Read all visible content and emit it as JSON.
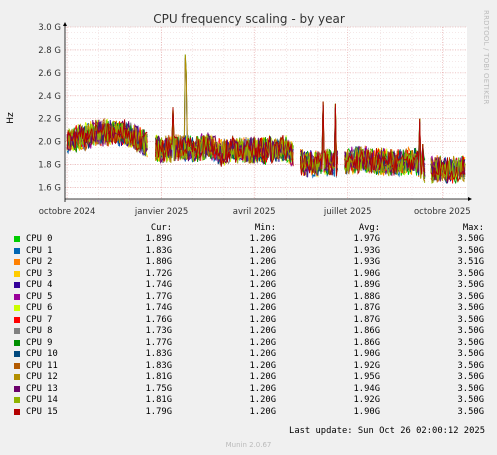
{
  "chart_data": {
    "type": "line",
    "title": "CPU frequency scaling - by year",
    "ylabel": "Hz",
    "watermark": "RRDTOOL / TOBI OETIKER",
    "ylim": [
      1.5,
      3.0
    ],
    "y_ticks": [
      "1.6 G",
      "1.8 G",
      "2.0 G",
      "2.2 G",
      "2.4 G",
      "2.6 G",
      "2.8 G",
      "3.0 G"
    ],
    "y_tick_values": [
      1.6,
      1.8,
      2.0,
      2.2,
      2.4,
      2.6,
      2.8,
      3.0
    ],
    "x_ticks": [
      "octobre 2024",
      "janvier 2025",
      "avril 2025",
      "juillet 2025",
      "octobre 2025"
    ],
    "x_tick_values": [
      1,
      93,
      183,
      274,
      366
    ],
    "xlim": [
      -1,
      390
    ],
    "grid": true,
    "trend": {
      "x": [
        1,
        30,
        55,
        80,
        95,
        110,
        125,
        140,
        150,
        160,
        180,
        200,
        215,
        230,
        240,
        255,
        265,
        275,
        285,
        300,
        320,
        340,
        350,
        365,
        375,
        388
      ],
      "y": [
        2.0,
        2.08,
        2.08,
        1.98,
        1.93,
        1.95,
        1.93,
        1.97,
        1.9,
        1.93,
        1.92,
        1.92,
        1.94,
        1.82,
        1.8,
        1.82,
        1.8,
        1.83,
        1.85,
        1.83,
        1.82,
        1.83,
        1.75,
        1.76,
        1.75,
        1.77
      ]
    },
    "gaps": [
      [
        80,
        86
      ],
      [
        222,
        227
      ],
      [
        265,
        270
      ],
      [
        350,
        354
      ]
    ],
    "spikes": [
      {
        "x": 104,
        "y": 2.3
      },
      {
        "x": 116,
        "y": 2.76
      },
      {
        "x": 117,
        "y": 2.6
      },
      {
        "x": 198,
        "y": 2.05
      },
      {
        "x": 250,
        "y": 2.35
      },
      {
        "x": 262,
        "y": 2.33
      },
      {
        "x": 266,
        "y": 2.17
      },
      {
        "x": 344,
        "y": 2.2
      },
      {
        "x": 347,
        "y": 1.98
      }
    ],
    "series": [
      {
        "name": "CPU 0",
        "color": "#00cc00"
      },
      {
        "name": "CPU 1",
        "color": "#0066b3"
      },
      {
        "name": "CPU 2",
        "color": "#ff8000"
      },
      {
        "name": "CPU 3",
        "color": "#ffcc00"
      },
      {
        "name": "CPU 4",
        "color": "#330099"
      },
      {
        "name": "CPU 5",
        "color": "#990099"
      },
      {
        "name": "CPU 6",
        "color": "#ccff00"
      },
      {
        "name": "CPU 7",
        "color": "#ff0000"
      },
      {
        "name": "CPU 8",
        "color": "#808080"
      },
      {
        "name": "CPU 9",
        "color": "#008f00"
      },
      {
        "name": "CPU 10",
        "color": "#00487d"
      },
      {
        "name": "CPU 11",
        "color": "#b35a00"
      },
      {
        "name": "CPU 12",
        "color": "#b38f00"
      },
      {
        "name": "CPU 13",
        "color": "#6b006b"
      },
      {
        "name": "CPU 14",
        "color": "#8fb300"
      },
      {
        "name": "CPU 15",
        "color": "#b30000"
      }
    ]
  },
  "legend": {
    "headers": {
      "cur": "Cur:",
      "min": "Min:",
      "avg": "Avg:",
      "max": "Max:"
    },
    "rows": [
      {
        "name": "CPU 0",
        "cur": "1.89G",
        "min": "1.20G",
        "avg": "1.97G",
        "max": "3.50G"
      },
      {
        "name": "CPU 1",
        "cur": "1.83G",
        "min": "1.20G",
        "avg": "1.93G",
        "max": "3.50G"
      },
      {
        "name": "CPU 2",
        "cur": "1.80G",
        "min": "1.20G",
        "avg": "1.93G",
        "max": "3.51G"
      },
      {
        "name": "CPU 3",
        "cur": "1.72G",
        "min": "1.20G",
        "avg": "1.90G",
        "max": "3.50G"
      },
      {
        "name": "CPU 4",
        "cur": "1.74G",
        "min": "1.20G",
        "avg": "1.89G",
        "max": "3.50G"
      },
      {
        "name": "CPU 5",
        "cur": "1.77G",
        "min": "1.20G",
        "avg": "1.88G",
        "max": "3.50G"
      },
      {
        "name": "CPU 6",
        "cur": "1.74G",
        "min": "1.20G",
        "avg": "1.87G",
        "max": "3.50G"
      },
      {
        "name": "CPU 7",
        "cur": "1.76G",
        "min": "1.20G",
        "avg": "1.87G",
        "max": "3.50G"
      },
      {
        "name": "CPU 8",
        "cur": "1.73G",
        "min": "1.20G",
        "avg": "1.86G",
        "max": "3.50G"
      },
      {
        "name": "CPU 9",
        "cur": "1.77G",
        "min": "1.20G",
        "avg": "1.86G",
        "max": "3.50G"
      },
      {
        "name": "CPU 10",
        "cur": "1.83G",
        "min": "1.20G",
        "avg": "1.90G",
        "max": "3.50G"
      },
      {
        "name": "CPU 11",
        "cur": "1.83G",
        "min": "1.20G",
        "avg": "1.92G",
        "max": "3.50G"
      },
      {
        "name": "CPU 12",
        "cur": "1.81G",
        "min": "1.20G",
        "avg": "1.95G",
        "max": "3.50G"
      },
      {
        "name": "CPU 13",
        "cur": "1.75G",
        "min": "1.20G",
        "avg": "1.94G",
        "max": "3.50G"
      },
      {
        "name": "CPU 14",
        "cur": "1.81G",
        "min": "1.20G",
        "avg": "1.92G",
        "max": "3.50G"
      },
      {
        "name": "CPU 15",
        "cur": "1.79G",
        "min": "1.20G",
        "avg": "1.90G",
        "max": "3.50G"
      }
    ]
  },
  "footer": {
    "last_update": "Last update: Sun Oct 26 02:00:12 2025",
    "munin": "Munin 2.0.67"
  }
}
